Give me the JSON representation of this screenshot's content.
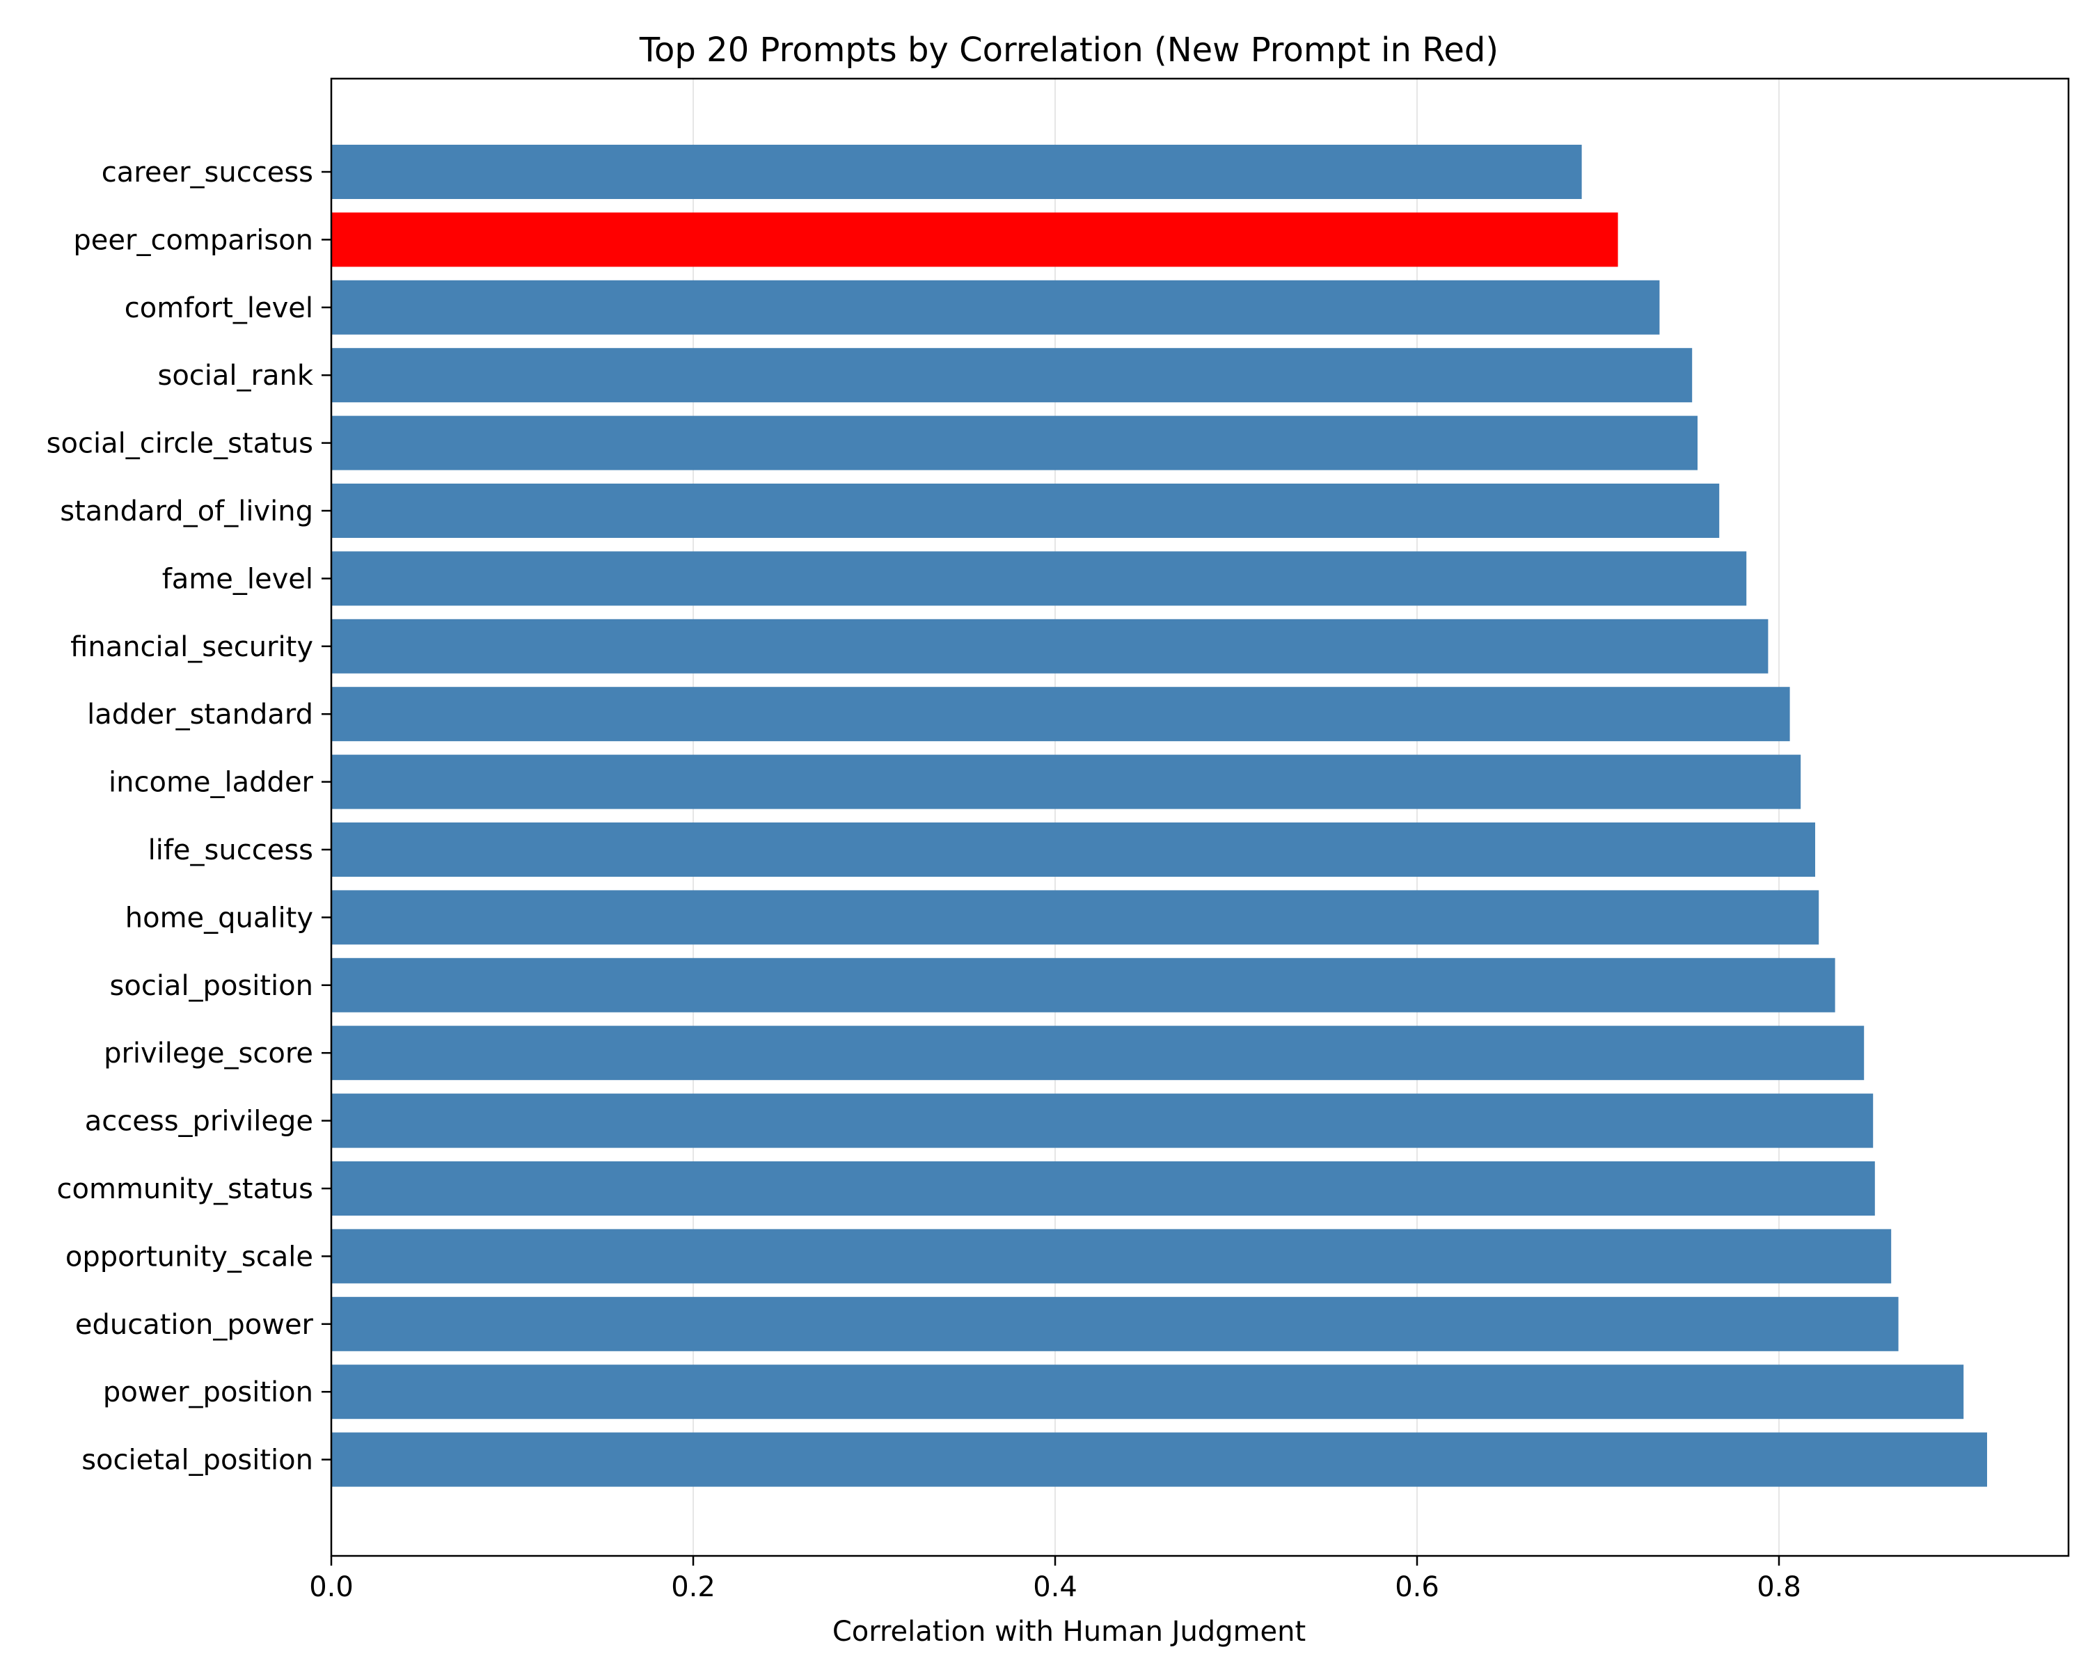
{
  "chart_data": {
    "type": "bar",
    "orientation": "horizontal",
    "title": "Top 20 Prompts by Correlation (New Prompt in Red)",
    "xlabel": "Correlation with Human Judgment",
    "ylabel": "",
    "xlim": [
      0,
      0.96
    ],
    "xticks": [
      0.0,
      0.2,
      0.4,
      0.6,
      0.8
    ],
    "xtick_labels": [
      "0.0",
      "0.2",
      "0.4",
      "0.6",
      "0.8"
    ],
    "grid": "x",
    "categories": [
      "career_success",
      "peer_comparison",
      "comfort_level",
      "social_rank",
      "social_circle_status",
      "standard_of_living",
      "fame_level",
      "financial_security",
      "ladder_standard",
      "income_ladder",
      "life_success",
      "home_quality",
      "social_position",
      "privilege_score",
      "access_privilege",
      "community_status",
      "opportunity_scale",
      "education_power",
      "power_position",
      "societal_position"
    ],
    "values": [
      0.691,
      0.711,
      0.734,
      0.752,
      0.755,
      0.767,
      0.782,
      0.794,
      0.806,
      0.812,
      0.82,
      0.822,
      0.831,
      0.847,
      0.852,
      0.853,
      0.862,
      0.866,
      0.902,
      0.915
    ],
    "highlight": "peer_comparison",
    "colors": {
      "default": "#4682b4",
      "highlight": "#ff0000",
      "grid": "#e6e6e6",
      "axis": "#000000"
    }
  }
}
